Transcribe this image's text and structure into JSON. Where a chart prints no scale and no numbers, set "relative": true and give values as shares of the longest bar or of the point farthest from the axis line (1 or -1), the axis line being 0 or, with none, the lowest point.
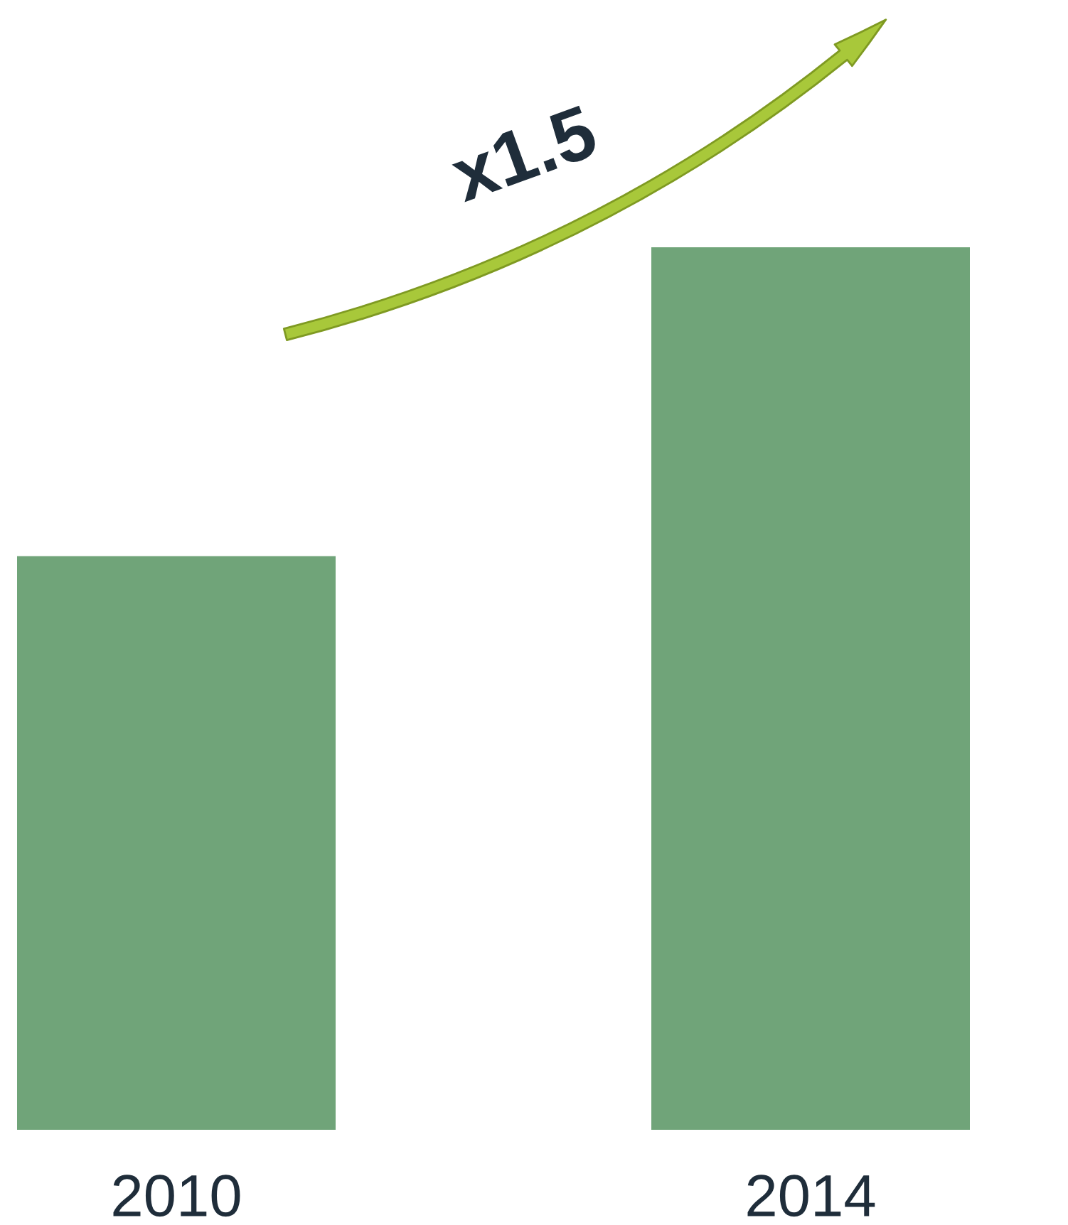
{
  "chart_data": {
    "type": "bar",
    "relative": true,
    "categories": [
      "2010",
      "2014"
    ],
    "values": [
      0.65,
      1
    ],
    "color": "#70a479",
    "annotations": [
      "x1.5"
    ]
  }
}
